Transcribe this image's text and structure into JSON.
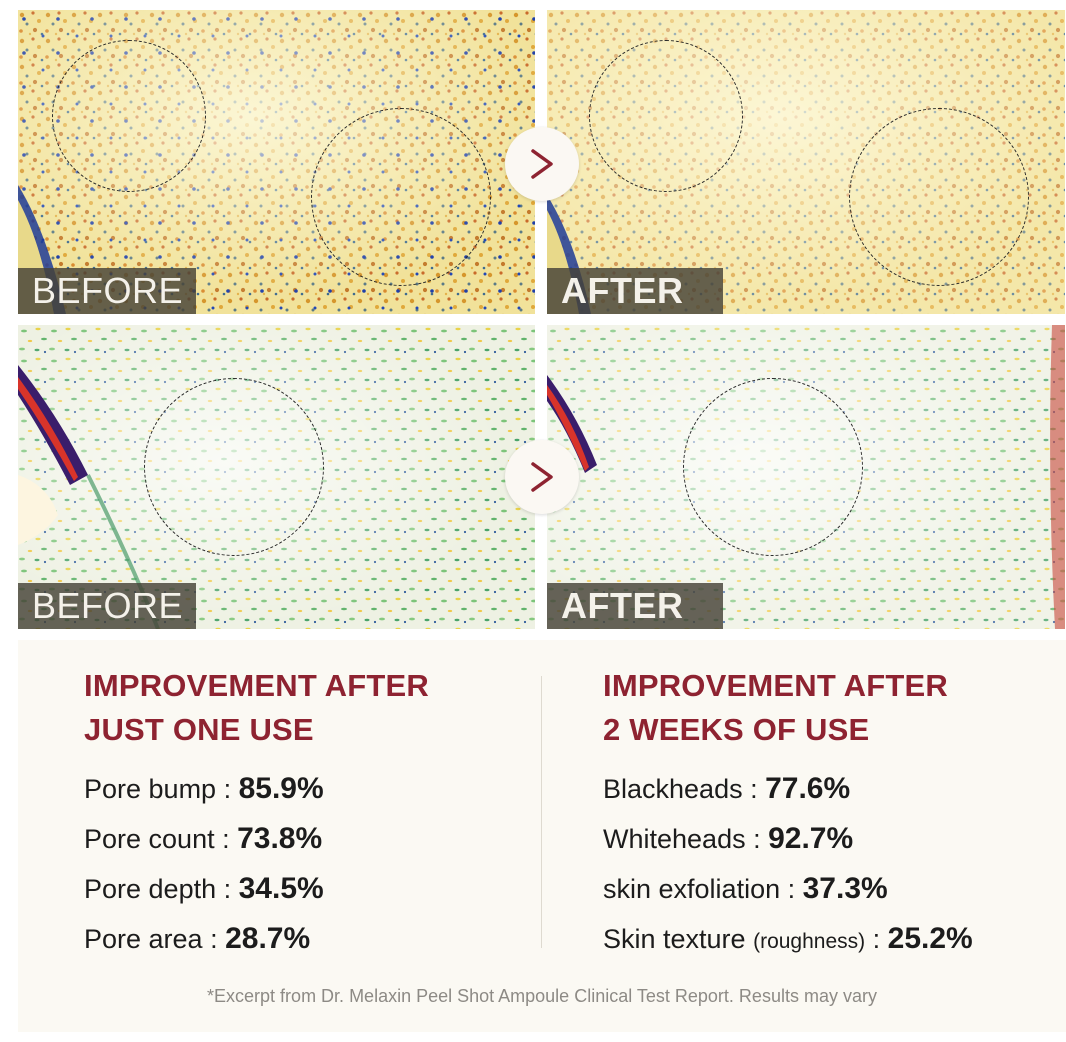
{
  "panels": {
    "top_left": {
      "label": "BEFORE"
    },
    "top_right": {
      "label": "AFTER"
    },
    "bottom_left": {
      "label": "BEFORE"
    },
    "bottom_right": {
      "label": "AFTER"
    }
  },
  "arrows": {
    "symbol": ">",
    "color": "#8e2331"
  },
  "left_column": {
    "heading_line1": "IMPROVEMENT AFTER",
    "heading_line2": "JUST ONE USE",
    "stats": [
      {
        "label": "Pore bump : ",
        "value": "85.9%"
      },
      {
        "label": "Pore count : ",
        "value": "73.8%"
      },
      {
        "label": "Pore depth : ",
        "value": "34.5%"
      },
      {
        "label": "Pore area : ",
        "value": "28.7%"
      }
    ]
  },
  "right_column": {
    "heading_line1": "IMPROVEMENT AFTER",
    "heading_line2": "2 WEEKS OF USE",
    "stats": [
      {
        "label": "Blackheads : ",
        "value": "77.6%"
      },
      {
        "label": "Whiteheads : ",
        "value": "92.7%"
      },
      {
        "label": "skin exfoliation : ",
        "value": "37.3%"
      },
      {
        "label": "Skin texture ",
        "small": "(roughness)",
        "label_after": " : ",
        "value": "25.2%"
      }
    ]
  },
  "footnote": "*Excerpt from Dr. Melaxin Peel Shot Ampoule Clinical Test Report. Results may vary",
  "colors": {
    "heading": "#8e2331",
    "background": "#fbf9f3",
    "text": "#1c1c1c",
    "footnote": "#8d8a85"
  }
}
